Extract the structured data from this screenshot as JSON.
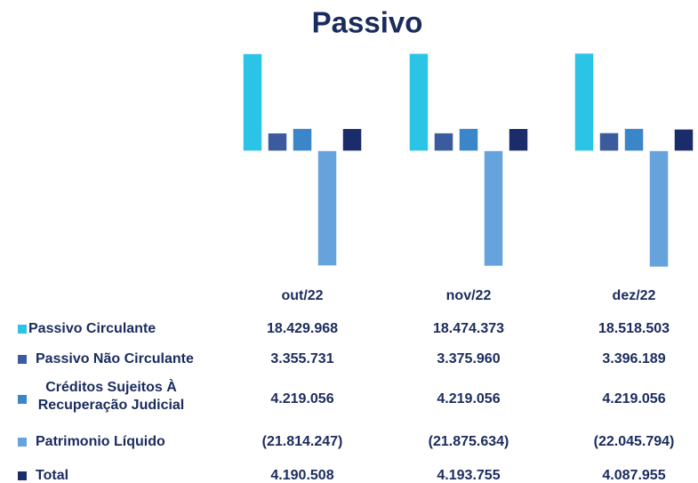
{
  "chart_data": {
    "type": "bar",
    "title": "Passivo",
    "categories": [
      "out/22",
      "nov/22",
      "dez/22"
    ],
    "series": [
      {
        "name": "Passivo Circulante",
        "color": "#2bc3e6",
        "values": [
          18429968,
          18474373,
          18518503
        ],
        "value_labels": [
          "18.429.968",
          "18.474.373",
          "18.518.503"
        ]
      },
      {
        "name": "Passivo Não Circulante",
        "color": "#3b5b9e",
        "values": [
          3355731,
          3375960,
          3396189
        ],
        "value_labels": [
          "3.355.731",
          "3.375.960",
          "3.396.189"
        ]
      },
      {
        "name": "Créditos Sujeitos À Recuperação Judicial",
        "color": "#3b86c8",
        "values": [
          4219056,
          4219056,
          4219056
        ],
        "value_labels": [
          "4.219.056",
          "4.219.056",
          "4.219.056"
        ]
      },
      {
        "name": "Patrimonio Líquido",
        "color": "#66a3dc",
        "values": [
          -21814247,
          -21875634,
          -22045794
        ],
        "value_labels": [
          "(21.814.247)",
          "(21.875.634)",
          "(22.045.794)"
        ]
      },
      {
        "name": "Total",
        "color": "#1a2d6a",
        "values": [
          4190508,
          4193755,
          4087955
        ],
        "value_labels": [
          "4.190.508",
          "4.193.755",
          "4.087.955"
        ]
      }
    ]
  }
}
